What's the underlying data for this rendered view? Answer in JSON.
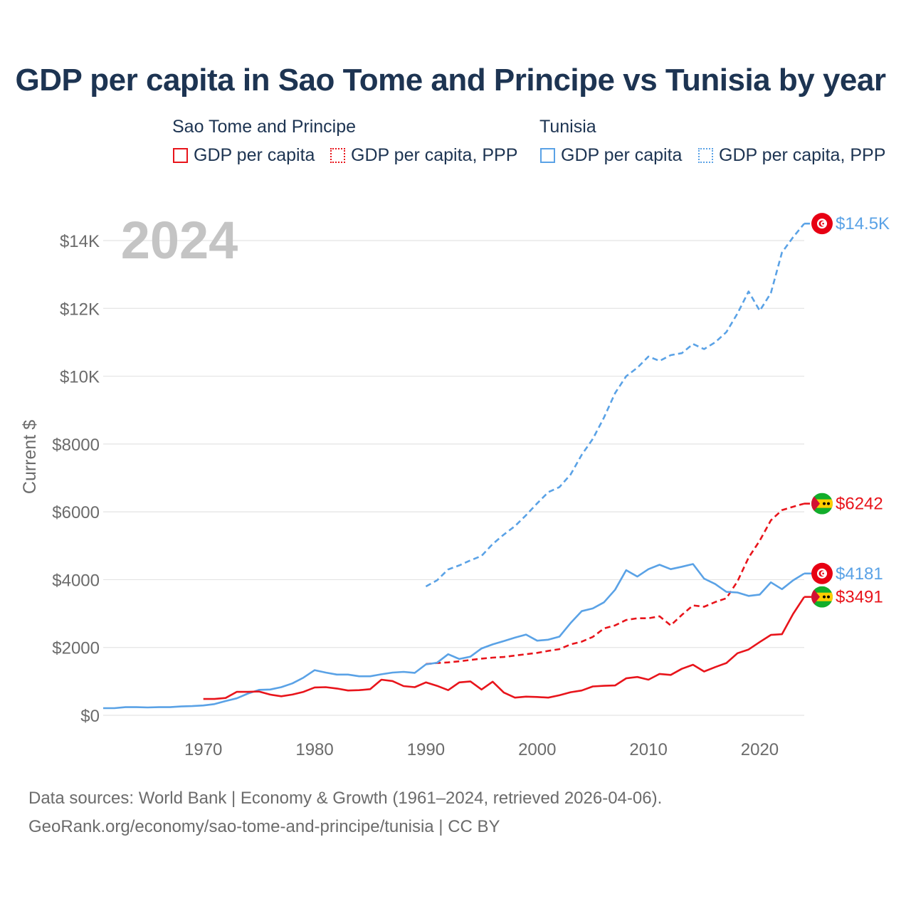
{
  "title": "GDP per capita in Sao Tome and Principe vs Tunisia by year",
  "legend": {
    "groups": [
      {
        "country": "Sao Tome and Principe",
        "color": "#e8141b",
        "items": [
          "GDP per capita",
          "GDP per capita, PPP"
        ]
      },
      {
        "country": "Tunisia",
        "color": "#5aa2e6",
        "items": [
          "GDP per capita",
          "GDP per capita, PPP"
        ]
      }
    ]
  },
  "year_label": "2024",
  "footer": {
    "line1": "Data sources: World Bank | Economy & Growth (1961–2024, retrieved 2026-04-06).",
    "line2": "GeoRank.org/economy/sao-tome-and-principe/tunisia | CC BY"
  },
  "chart_data": {
    "type": "line",
    "title": "GDP per capita in Sao Tome and Principe vs Tunisia by year",
    "xlabel": "",
    "ylabel": "Current $",
    "xlim": [
      1961,
      2024
    ],
    "ylim": [
      0,
      15000
    ],
    "x_ticks": [
      1970,
      1980,
      1990,
      2000,
      2010,
      2020
    ],
    "x_tick_labels": [
      "1970",
      "1980",
      "1990",
      "2000",
      "2010",
      "2020"
    ],
    "y_ticks": [
      0,
      2000,
      4000,
      6000,
      8000,
      10000,
      12000,
      14000
    ],
    "y_tick_labels": [
      "$0",
      "$2000",
      "$4000",
      "$6000",
      "$8000",
      "$10K",
      "$12K",
      "$14K"
    ],
    "grid": true,
    "series": [
      {
        "name": "Tunisia GDP per capita, PPP",
        "country": "Tunisia",
        "style": "dashed",
        "color": "#5aa2e6",
        "end_label": "$14.5K",
        "flag": "tunisia",
        "x": [
          1990,
          1991,
          1992,
          1993,
          1994,
          1995,
          1996,
          1997,
          1998,
          1999,
          2000,
          2001,
          2002,
          2003,
          2004,
          2005,
          2006,
          2007,
          2008,
          2009,
          2010,
          2011,
          2012,
          2013,
          2014,
          2015,
          2016,
          2017,
          2018,
          2019,
          2020,
          2021,
          2022,
          2023,
          2024
        ],
        "values": [
          3800,
          3980,
          4300,
          4420,
          4570,
          4700,
          5050,
          5330,
          5580,
          5900,
          6250,
          6580,
          6730,
          7100,
          7680,
          8150,
          8780,
          9500,
          10000,
          10250,
          10580,
          10450,
          10620,
          10680,
          10950,
          10800,
          11000,
          11300,
          11850,
          12500,
          11930,
          12450,
          13650,
          14100,
          14500
        ]
      },
      {
        "name": "Sao Tome and Principe GDP per capita, PPP",
        "country": "Sao Tome and Principe",
        "style": "dashed",
        "color": "#e8141b",
        "end_label": "$6242",
        "flag": "sao-tome",
        "x": [
          1990,
          1991,
          1992,
          1993,
          1994,
          1995,
          1996,
          1997,
          1998,
          1999,
          2000,
          2001,
          2002,
          2003,
          2004,
          2005,
          2006,
          2007,
          2008,
          2009,
          2010,
          2011,
          2012,
          2013,
          2014,
          2015,
          2016,
          2017,
          2018,
          2019,
          2020,
          2021,
          2022,
          2023,
          2024
        ],
        "values": [
          1510,
          1540,
          1560,
          1590,
          1630,
          1670,
          1700,
          1720,
          1760,
          1800,
          1840,
          1900,
          1950,
          2090,
          2170,
          2310,
          2560,
          2650,
          2810,
          2860,
          2860,
          2920,
          2650,
          2960,
          3240,
          3200,
          3340,
          3450,
          3950,
          4650,
          5150,
          5750,
          6050,
          6150,
          6242
        ]
      },
      {
        "name": "Tunisia GDP per capita",
        "country": "Tunisia",
        "style": "solid",
        "color": "#5aa2e6",
        "end_label": "$4181",
        "flag": "tunisia",
        "x": [
          1961,
          1962,
          1963,
          1964,
          1965,
          1966,
          1967,
          1968,
          1969,
          1970,
          1971,
          1972,
          1973,
          1974,
          1975,
          1976,
          1977,
          1978,
          1979,
          1980,
          1981,
          1982,
          1983,
          1984,
          1985,
          1986,
          1987,
          1988,
          1989,
          1990,
          1991,
          1992,
          1993,
          1994,
          1995,
          1996,
          1997,
          1998,
          1999,
          2000,
          2001,
          2002,
          2003,
          2004,
          2005,
          2006,
          2007,
          2008,
          2009,
          2010,
          2011,
          2012,
          2013,
          2014,
          2015,
          2016,
          2017,
          2018,
          2019,
          2020,
          2021,
          2022,
          2023,
          2024
        ],
        "values": [
          210,
          210,
          240,
          240,
          230,
          240,
          240,
          260,
          270,
          290,
          330,
          420,
          500,
          640,
          750,
          760,
          830,
          940,
          1110,
          1330,
          1260,
          1200,
          1200,
          1150,
          1150,
          1210,
          1260,
          1280,
          1250,
          1500,
          1550,
          1800,
          1660,
          1730,
          1970,
          2090,
          2190,
          2290,
          2380,
          2200,
          2230,
          2320,
          2720,
          3070,
          3150,
          3330,
          3700,
          4280,
          4090,
          4310,
          4440,
          4310,
          4380,
          4460,
          4030,
          3870,
          3640,
          3620,
          3520,
          3560,
          3920,
          3720,
          3980,
          4181
        ]
      },
      {
        "name": "Sao Tome and Principe GDP per capita",
        "country": "Sao Tome and Principe",
        "style": "solid",
        "color": "#e8141b",
        "end_label": "$3491",
        "flag": "sao-tome",
        "x": [
          1970,
          1971,
          1972,
          1973,
          1974,
          1975,
          1976,
          1977,
          1978,
          1979,
          1980,
          1981,
          1982,
          1983,
          1984,
          1985,
          1986,
          1987,
          1988,
          1989,
          1990,
          1991,
          1992,
          1993,
          1994,
          1995,
          1996,
          1997,
          1998,
          1999,
          2000,
          2001,
          2002,
          2003,
          2004,
          2005,
          2006,
          2007,
          2008,
          2009,
          2010,
          2011,
          2012,
          2013,
          2014,
          2015,
          2016,
          2017,
          2018,
          2019,
          2020,
          2021,
          2022,
          2023,
          2024
        ],
        "values": [
          480,
          480,
          510,
          690,
          690,
          700,
          610,
          560,
          610,
          690,
          820,
          830,
          790,
          730,
          740,
          770,
          1050,
          1010,
          860,
          830,
          970,
          870,
          740,
          970,
          1000,
          760,
          990,
          670,
          520,
          550,
          540,
          520,
          590,
          680,
          730,
          850,
          870,
          880,
          1090,
          1130,
          1050,
          1220,
          1190,
          1370,
          1490,
          1290,
          1420,
          1540,
          1830,
          1940,
          2160,
          2370,
          2390,
          2990,
          3491
        ]
      }
    ]
  }
}
